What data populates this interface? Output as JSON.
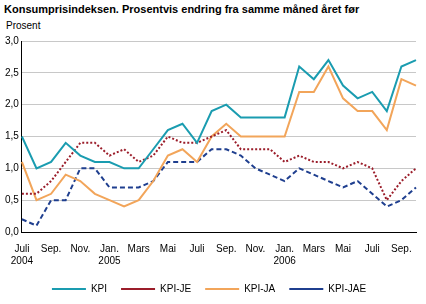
{
  "chart_data": {
    "type": "line",
    "title": "Konsumprisindeksen. Prosentvis endring fra samme måned året før",
    "y_label": "Prosent",
    "categories": [
      [
        "Juli",
        "2004"
      ],
      null,
      "Sep.",
      null,
      "Nov.",
      null,
      [
        "Jan.",
        "2005"
      ],
      null,
      "Mars",
      null,
      "Mai",
      null,
      "Juli",
      null,
      "Sep.",
      null,
      "Nov.",
      null,
      [
        "Jan.",
        "2006"
      ],
      null,
      "Mars",
      null,
      "Mai",
      null,
      "Juli",
      null,
      "Sep.",
      null
    ],
    "series": [
      {
        "name": "KPI",
        "color": "#1a9cb0",
        "line_style": "solid",
        "values": [
          1.5,
          1.0,
          1.1,
          1.4,
          1.2,
          1.1,
          1.1,
          1.0,
          1.0,
          1.3,
          1.6,
          1.7,
          1.4,
          1.9,
          2.0,
          1.8,
          1.8,
          1.8,
          1.8,
          2.6,
          2.4,
          2.7,
          2.3,
          2.1,
          2.2,
          1.9,
          2.6,
          2.7
        ]
      },
      {
        "name": "KPI-JE",
        "color": "#9b1d2a",
        "line_style": "dotted",
        "values": [
          0.6,
          0.6,
          0.8,
          1.1,
          1.4,
          1.4,
          1.2,
          1.3,
          1.1,
          1.2,
          1.5,
          1.4,
          1.4,
          1.5,
          1.6,
          1.3,
          1.3,
          1.3,
          1.1,
          1.2,
          1.1,
          1.1,
          1.0,
          1.1,
          1.0,
          0.5,
          0.8,
          1.0
        ]
      },
      {
        "name": "KPI-JA",
        "color": "#f2a55a",
        "line_style": "solid",
        "values": [
          1.1,
          0.5,
          0.6,
          0.9,
          0.8,
          0.6,
          0.5,
          0.4,
          0.5,
          0.8,
          1.2,
          1.3,
          1.1,
          1.5,
          1.7,
          1.5,
          1.5,
          1.5,
          1.5,
          2.2,
          2.2,
          2.6,
          2.1,
          1.9,
          1.9,
          1.6,
          2.4,
          2.3
        ]
      },
      {
        "name": "KPI-JAE",
        "color": "#1f3f8f",
        "line_style": "dashed",
        "values": [
          0.2,
          0.1,
          0.5,
          0.5,
          1.0,
          1.0,
          0.7,
          0.7,
          0.7,
          0.8,
          1.1,
          1.1,
          1.1,
          1.3,
          1.3,
          1.2,
          1.0,
          0.9,
          0.8,
          1.0,
          0.9,
          0.8,
          0.7,
          0.8,
          0.6,
          0.4,
          0.5,
          0.7
        ]
      }
    ],
    "ylim": [
      0,
      3
    ],
    "yticks": [
      {
        "value": 0,
        "label": "0,0"
      },
      {
        "value": 0.5,
        "label": "0,5"
      },
      {
        "value": 1,
        "label": "1,0"
      },
      {
        "value": 1.5,
        "label": "1,5"
      },
      {
        "value": 2,
        "label": "2,0"
      },
      {
        "value": 2.5,
        "label": "2,5"
      },
      {
        "value": 3,
        "label": "3,0"
      }
    ],
    "grid": true,
    "legend": "bottom"
  }
}
